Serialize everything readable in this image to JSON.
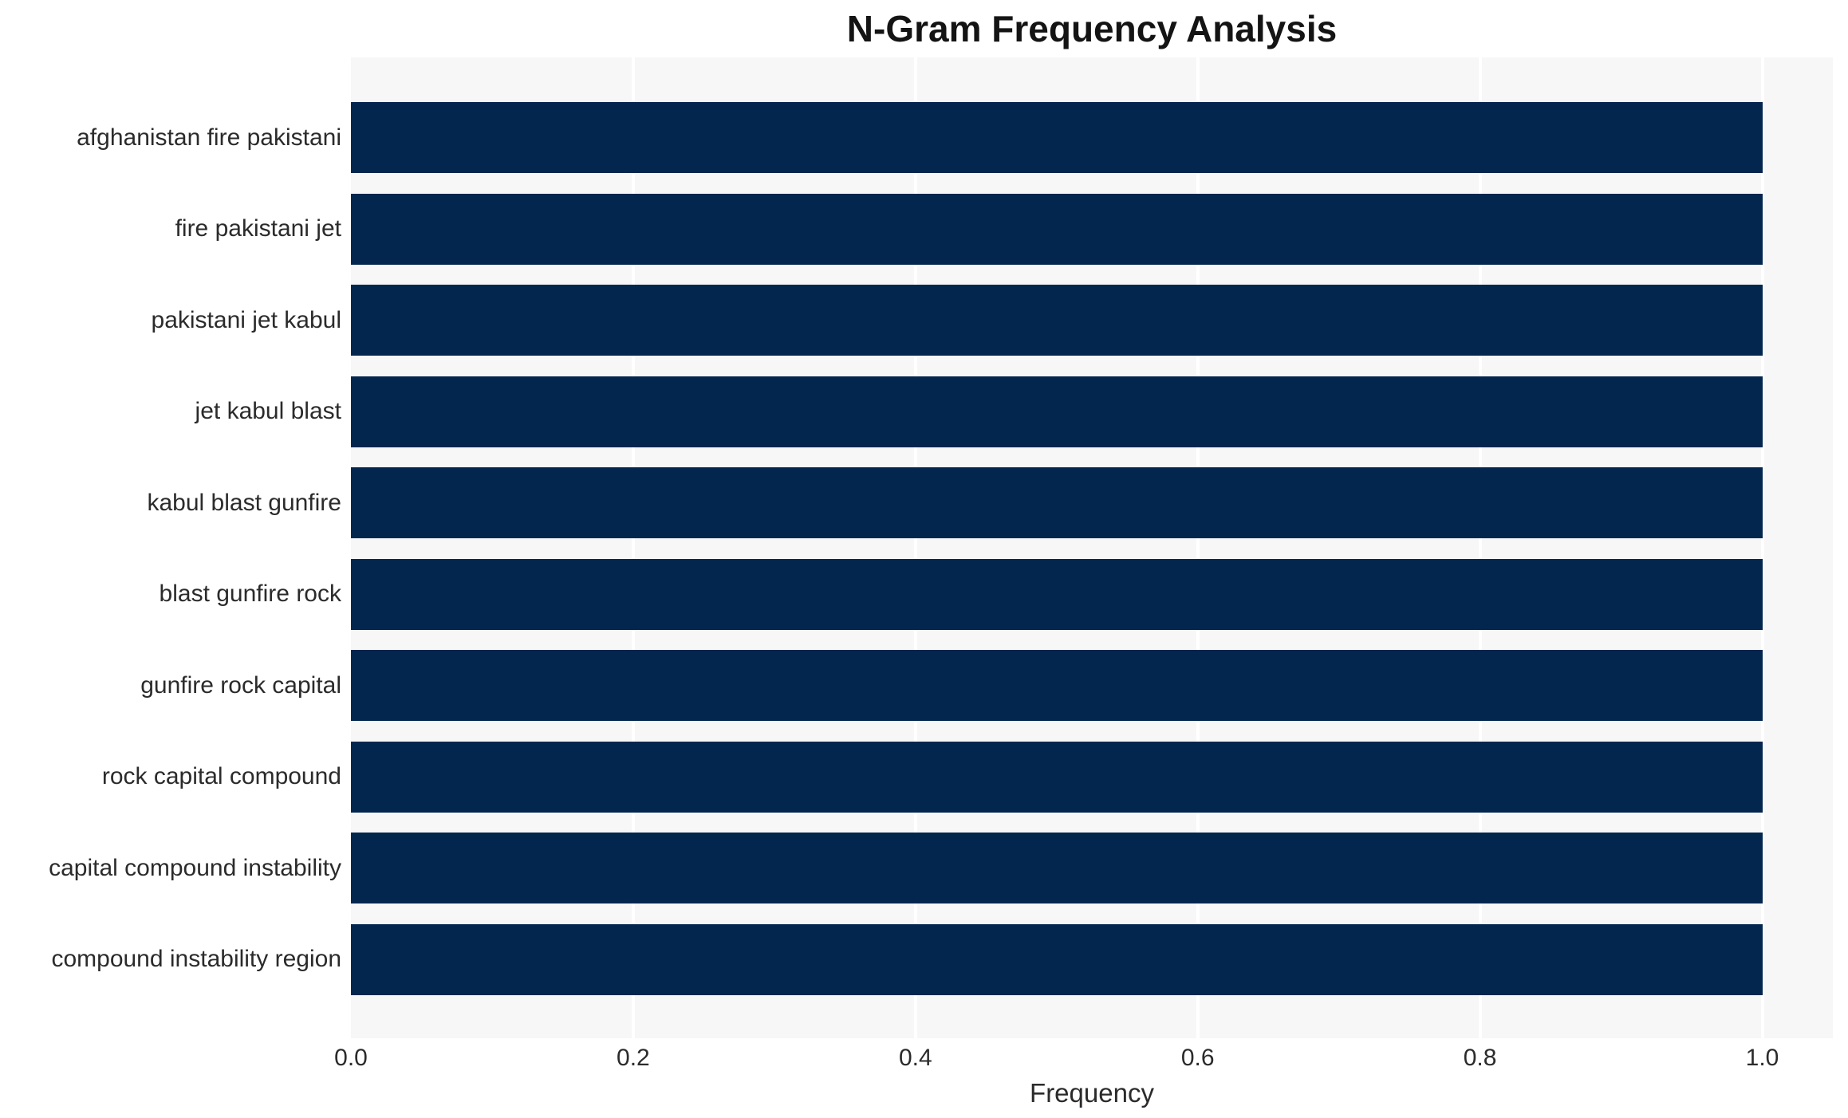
{
  "chart_data": {
    "type": "bar",
    "orientation": "horizontal",
    "title": "N-Gram Frequency Analysis",
    "xlabel": "Frequency",
    "ylabel": "",
    "categories": [
      "afghanistan fire pakistani",
      "fire pakistani jet",
      "pakistani jet kabul",
      "jet kabul blast",
      "kabul blast gunfire",
      "blast gunfire rock",
      "gunfire rock capital",
      "rock capital compound",
      "capital compound instability",
      "compound instability region"
    ],
    "values": [
      1.0,
      1.0,
      1.0,
      1.0,
      1.0,
      1.0,
      1.0,
      1.0,
      1.0,
      1.0
    ],
    "xticks": [
      0.0,
      0.2,
      0.4,
      0.6,
      0.8,
      1.0
    ],
    "xlim": [
      0,
      1.05
    ],
    "grid": "vertical-white-lines",
    "legend": "none",
    "colors": {
      "bar": "#03264f",
      "plot_background": "#f7f7f7",
      "figure_background": "#ffffff",
      "gridline": "#ffffff",
      "tick_text": "#2b2b2b",
      "title_text": "#141414"
    }
  }
}
